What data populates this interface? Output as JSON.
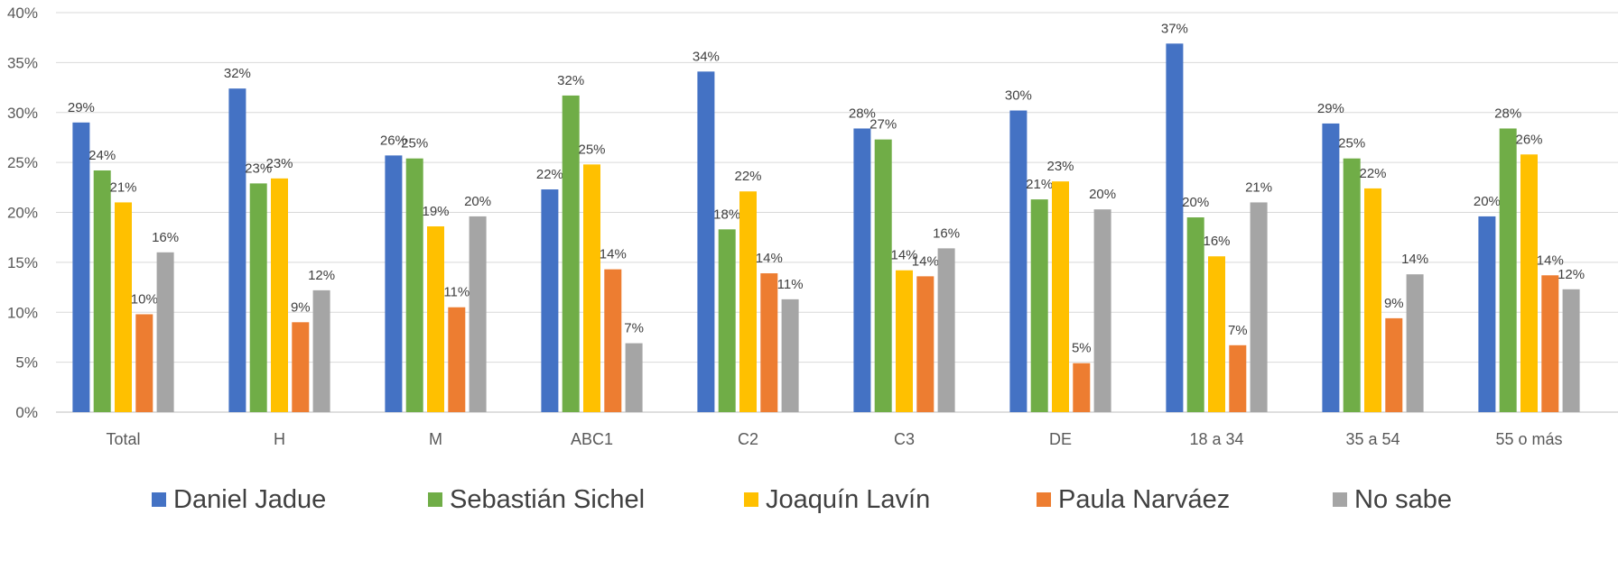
{
  "chart_data": {
    "type": "bar",
    "title": "",
    "xlabel": "",
    "ylabel": "",
    "ylim": [
      0,
      40
    ],
    "yticks": [
      "0%",
      "5%",
      "10%",
      "15%",
      "20%",
      "25%",
      "30%",
      "35%",
      "40%"
    ],
    "grid": true,
    "legend_position": "bottom",
    "categories": [
      "Total",
      "H",
      "M",
      "ABC1",
      "C2",
      "C3",
      "DE",
      "18 a 34",
      "35 a 54",
      "55 o más"
    ],
    "series": [
      {
        "name": "Daniel Jadue",
        "color": "#4472C4",
        "values": [
          29,
          32.4,
          25.7,
          22.3,
          34.1,
          28.4,
          30.2,
          36.9,
          28.9,
          19.6
        ],
        "labels": [
          "29%",
          "32%",
          "26%",
          "22%",
          "34%",
          "28%",
          "30%",
          "37%",
          "29%",
          "20%"
        ]
      },
      {
        "name": "Sebastián Sichel",
        "color": "#70AD47",
        "values": [
          24.2,
          22.9,
          25.4,
          31.7,
          18.3,
          27.3,
          21.3,
          19.5,
          25.4,
          28.4
        ],
        "labels": [
          "24%",
          "23%",
          "25%",
          "32%",
          "18%",
          "27%",
          "21%",
          "20%",
          "25%",
          "28%"
        ]
      },
      {
        "name": "Joaquín Lavín",
        "color": "#FFC000",
        "values": [
          21,
          23.4,
          18.6,
          24.8,
          22.1,
          14.2,
          23.1,
          15.6,
          22.4,
          25.8
        ],
        "labels": [
          "21%",
          "23%",
          "19%",
          "25%",
          "22%",
          "14%",
          "23%",
          "16%",
          "22%",
          "26%"
        ]
      },
      {
        "name": "Paula Narváez",
        "color": "#ED7D31",
        "values": [
          9.8,
          9,
          10.5,
          14.3,
          13.9,
          13.6,
          4.9,
          6.7,
          9.4,
          13.7
        ],
        "labels": [
          "10%",
          "9%",
          "11%",
          "14%",
          "14%",
          "14%",
          "5%",
          "7%",
          "9%",
          "14%"
        ]
      },
      {
        "name": "No sabe",
        "color": "#A5A5A5",
        "values": [
          16,
          12.2,
          19.6,
          6.9,
          11.3,
          16.4,
          20.3,
          21,
          13.8,
          12.3
        ],
        "labels": [
          "16%",
          "12%",
          "20%",
          "7%",
          "11%",
          "16%",
          "20%",
          "21%",
          "14%",
          "12%"
        ]
      }
    ]
  }
}
